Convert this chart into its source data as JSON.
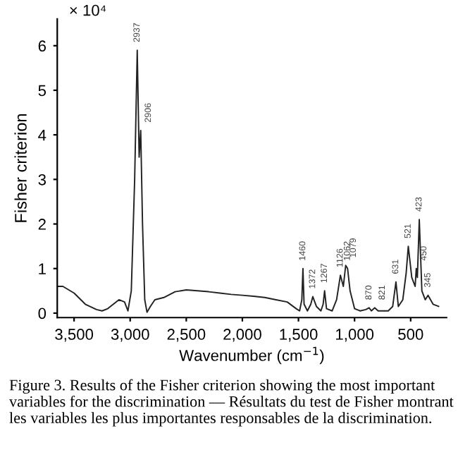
{
  "chart_data": {
    "type": "line",
    "xlabel": "Wavenumber (cm$^{−1}$)",
    "ylabel": "Fisher criterion",
    "xlim": [
      3650,
      180
    ],
    "xticks": [
      {
        "value": 3500,
        "label": "3,500"
      },
      {
        "value": 3000,
        "label": "3,000"
      },
      {
        "value": 2500,
        "label": "2,500"
      },
      {
        "value": 2000,
        "label": "2,000"
      },
      {
        "value": 1500,
        "label": "1,500"
      },
      {
        "value": 1000,
        "label": "1,000"
      },
      500
    ],
    "ylim": [
      -0.1,
      6.6
    ],
    "yticks": [
      0,
      1,
      2,
      3,
      4,
      5,
      6
    ],
    "grid": false,
    "legend": false,
    "marker": "none",
    "line_style": "solid",
    "series": [
      {
        "color": "#222222",
        "x": [
          3650,
          3600,
          3500,
          3400,
          3300,
          3250,
          3200,
          3100,
          3050,
          3020,
          2990,
          2960,
          2937,
          2920,
          2906,
          2890,
          2870,
          2850,
          2820,
          2780,
          2700,
          2600,
          2500,
          2400,
          2300,
          2200,
          2100,
          2000,
          1900,
          1800,
          1700,
          1600,
          1520,
          1490,
          1470,
          1460,
          1450,
          1420,
          1390,
          1372,
          1340,
          1300,
          1280,
          1267,
          1250,
          1200,
          1160,
          1126,
          1100,
          1079,
          1062,
          1040,
          1000,
          950,
          900,
          870,
          850,
          821,
          790,
          700,
          660,
          631,
          610,
          570,
          540,
          521,
          490,
          460,
          450,
          440,
          423,
          400,
          370,
          345,
          300,
          250
        ],
        "values": [
          0.6,
          0.6,
          0.45,
          0.2,
          0.08,
          0.05,
          0.1,
          0.3,
          0.25,
          0.05,
          0.5,
          3,
          5.9,
          3.5,
          4.1,
          2,
          0.3,
          0.02,
          0.15,
          0.3,
          0.35,
          0.48,
          0.52,
          0.5,
          0.48,
          0.45,
          0.42,
          0.4,
          0.38,
          0.35,
          0.3,
          0.25,
          0.1,
          0.05,
          0.3,
          1.0,
          0.2,
          0.05,
          0.2,
          0.37,
          0.15,
          0.05,
          0.2,
          0.5,
          0.1,
          0.05,
          0.3,
          0.85,
          0.6,
          1.07,
          1.0,
          0.5,
          0.1,
          0.05,
          0.08,
          0.12,
          0.05,
          0.12,
          0.05,
          0.05,
          0.15,
          0.7,
          0.15,
          0.3,
          0.9,
          1.5,
          0.8,
          0.6,
          1.0,
          0.8,
          2.1,
          0.5,
          0.3,
          0.4,
          0.2,
          0.15
        ]
      }
    ],
    "annotations": [
      "× 10⁴",
      {
        "text": "2937",
        "x": 2937,
        "y": 5.9
      },
      {
        "text": "2906",
        "x": 2906,
        "y": 4.1
      },
      {
        "text": "1460",
        "x": 1460,
        "y": 1.0
      },
      {
        "text": "1372",
        "x": 1372,
        "y": 0.37
      },
      {
        "text": "1267",
        "x": 1267,
        "y": 0.5
      },
      {
        "text": "1126",
        "x": 1126,
        "y": 0.85
      },
      {
        "text": "1079",
        "x": 1079,
        "y": 1.07
      },
      {
        "text": "1062",
        "x": 1062,
        "y": 1.0
      },
      {
        "text": "870",
        "x": 870,
        "y": 0.12
      },
      {
        "text": "821",
        "x": 821,
        "y": 0.12
      },
      {
        "text": "631",
        "x": 631,
        "y": 0.7
      },
      {
        "text": "521",
        "x": 521,
        "y": 1.5
      },
      {
        "text": "450",
        "x": 450,
        "y": 1.0
      },
      {
        "text": "423",
        "x": 423,
        "y": 2.1
      },
      {
        "text": "345",
        "x": 345,
        "y": 0.4
      },
      "Figure 3. Results of the Fisher criterion showing the most important variables for the discrimination — Résultats du test de Fisher montrant les variables les plus importantes responsables de la discrimination."
    ]
  }
}
